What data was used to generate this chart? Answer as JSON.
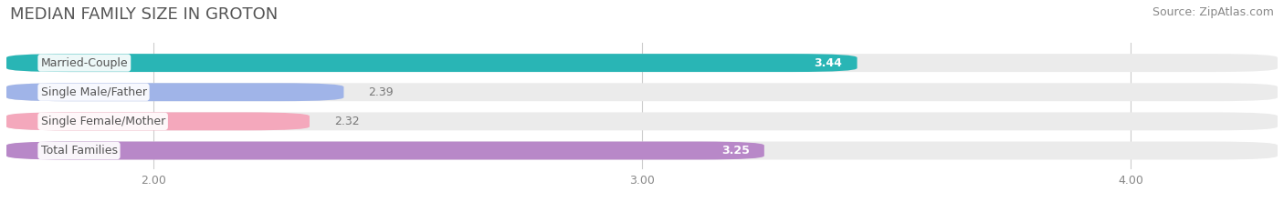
{
  "title": "MEDIAN FAMILY SIZE IN GROTON",
  "source": "Source: ZipAtlas.com",
  "categories": [
    "Married-Couple",
    "Single Male/Father",
    "Single Female/Mother",
    "Total Families"
  ],
  "values": [
    3.44,
    2.39,
    2.32,
    3.25
  ],
  "bar_colors": [
    "#29b5b5",
    "#a0b4e8",
    "#f4a8bc",
    "#b888c8"
  ],
  "label_colors": [
    "white",
    "white",
    "white",
    "white"
  ],
  "value_label_colors": [
    "white",
    "#777777",
    "#777777",
    "white"
  ],
  "xmin": 1.7,
  "xmax": 4.3,
  "xlim_display": [
    1.7,
    4.3
  ],
  "xticks": [
    2.0,
    3.0,
    4.0
  ],
  "xtick_labels": [
    "2.00",
    "3.00",
    "4.00"
  ],
  "bar_height": 0.62,
  "background_color": "#ffffff",
  "bar_bg_color": "#ebebeb",
  "title_fontsize": 13,
  "source_fontsize": 9,
  "label_fontsize": 9,
  "value_fontsize": 9
}
